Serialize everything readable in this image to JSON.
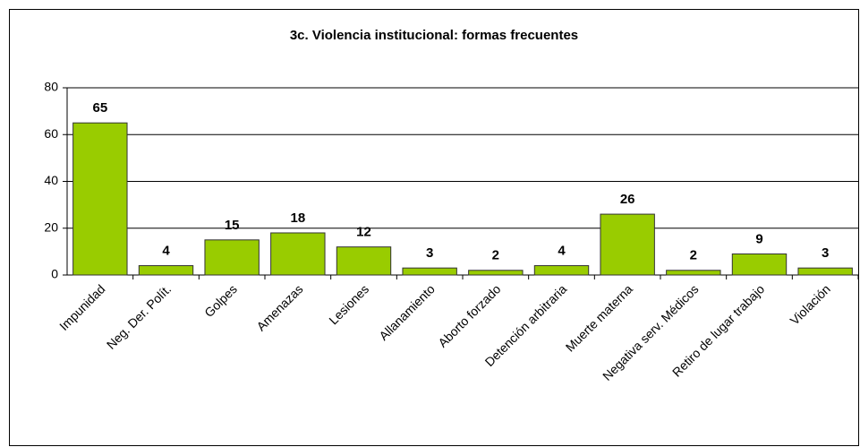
{
  "chart_data": {
    "type": "bar",
    "title": "3c. Violencia institucional: formas frecuentes",
    "categories": [
      "Impunidad",
      "Neg. Der. Polít.",
      "Golpes",
      "Amenazas",
      "Lesiones",
      "Allanamiento",
      "Aborto forzado",
      "Detención arbitraria",
      "Muerte materna",
      "Negativa serv. Médicos",
      "Retiro de lugar trabajo",
      "Violación"
    ],
    "values": [
      65,
      4,
      15,
      18,
      12,
      3,
      2,
      4,
      26,
      2,
      9,
      3
    ],
    "color": "#99cc00",
    "ylim": [
      0,
      80
    ],
    "yticks": [
      0,
      20,
      40,
      60,
      80
    ],
    "grid": true
  }
}
